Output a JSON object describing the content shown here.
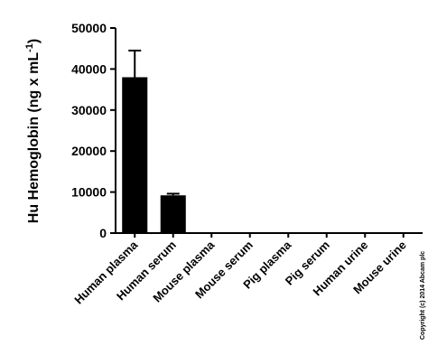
{
  "chart_data": {
    "type": "bar",
    "y_label": "Hu Hemoglobin (ng x mL",
    "y_label_superscript": "-1",
    "y_label_end": ")",
    "categories": [
      "Human plasma",
      "Human serum",
      "Mouse plasma",
      "Mouse serum",
      "Pig plasma",
      "Pig serum",
      "Human urine",
      "Mouse urine"
    ],
    "values": [
      38000,
      9200,
      0,
      0,
      0,
      0,
      0,
      0
    ],
    "errors": [
      6500,
      400,
      0,
      0,
      0,
      0,
      0,
      0
    ],
    "color": "#000000",
    "ylim": [
      0,
      50000
    ],
    "yticks": [
      0,
      10000,
      20000,
      30000,
      40000,
      50000
    ],
    "grid": false,
    "copyright": "Copyright (c) 2014 Abcam plc"
  }
}
